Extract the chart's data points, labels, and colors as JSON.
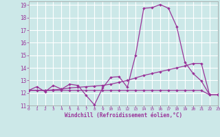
{
  "background_color": "#cce8e8",
  "grid_color": "#b0d8d8",
  "line_color": "#993399",
  "xlim": [
    0,
    23
  ],
  "ylim": [
    11,
    19.3
  ],
  "xticks": [
    0,
    1,
    2,
    3,
    4,
    5,
    6,
    7,
    8,
    9,
    10,
    11,
    12,
    13,
    14,
    15,
    16,
    17,
    18,
    19,
    20,
    21,
    22,
    23
  ],
  "yticks": [
    11,
    12,
    13,
    14,
    15,
    16,
    17,
    18,
    19
  ],
  "xlabel": "Windchill (Refroidissement éolien,°C)",
  "line1_x": [
    0,
    1,
    2,
    3,
    4,
    5,
    6,
    7,
    8,
    9,
    10,
    11,
    12,
    13,
    14,
    15,
    16,
    17,
    18,
    19,
    20,
    21,
    22,
    23
  ],
  "line1_y": [
    12.2,
    12.5,
    12.1,
    12.6,
    12.3,
    12.7,
    12.6,
    11.8,
    11.05,
    12.4,
    13.25,
    13.3,
    12.45,
    15.0,
    18.75,
    18.8,
    19.05,
    18.75,
    17.3,
    14.45,
    13.55,
    12.95,
    11.85,
    11.85
  ],
  "line2_x": [
    0,
    1,
    2,
    3,
    4,
    5,
    6,
    7,
    8,
    9,
    10,
    11,
    12,
    13,
    14,
    15,
    16,
    17,
    18,
    19,
    20,
    21,
    22,
    23
  ],
  "line2_y": [
    12.2,
    12.2,
    12.2,
    12.25,
    12.3,
    12.4,
    12.45,
    12.5,
    12.55,
    12.6,
    12.7,
    12.85,
    13.0,
    13.2,
    13.4,
    13.55,
    13.7,
    13.85,
    14.0,
    14.15,
    14.35,
    14.35,
    11.85,
    11.85
  ],
  "line3_x": [
    0,
    1,
    2,
    3,
    4,
    5,
    6,
    7,
    8,
    9,
    10,
    11,
    12,
    13,
    14,
    15,
    16,
    17,
    18,
    19,
    20,
    21,
    22,
    23
  ],
  "line3_y": [
    12.2,
    12.2,
    12.2,
    12.2,
    12.2,
    12.2,
    12.2,
    12.2,
    12.2,
    12.2,
    12.2,
    12.2,
    12.2,
    12.2,
    12.2,
    12.2,
    12.2,
    12.2,
    12.2,
    12.2,
    12.2,
    12.2,
    11.85,
    11.85
  ]
}
